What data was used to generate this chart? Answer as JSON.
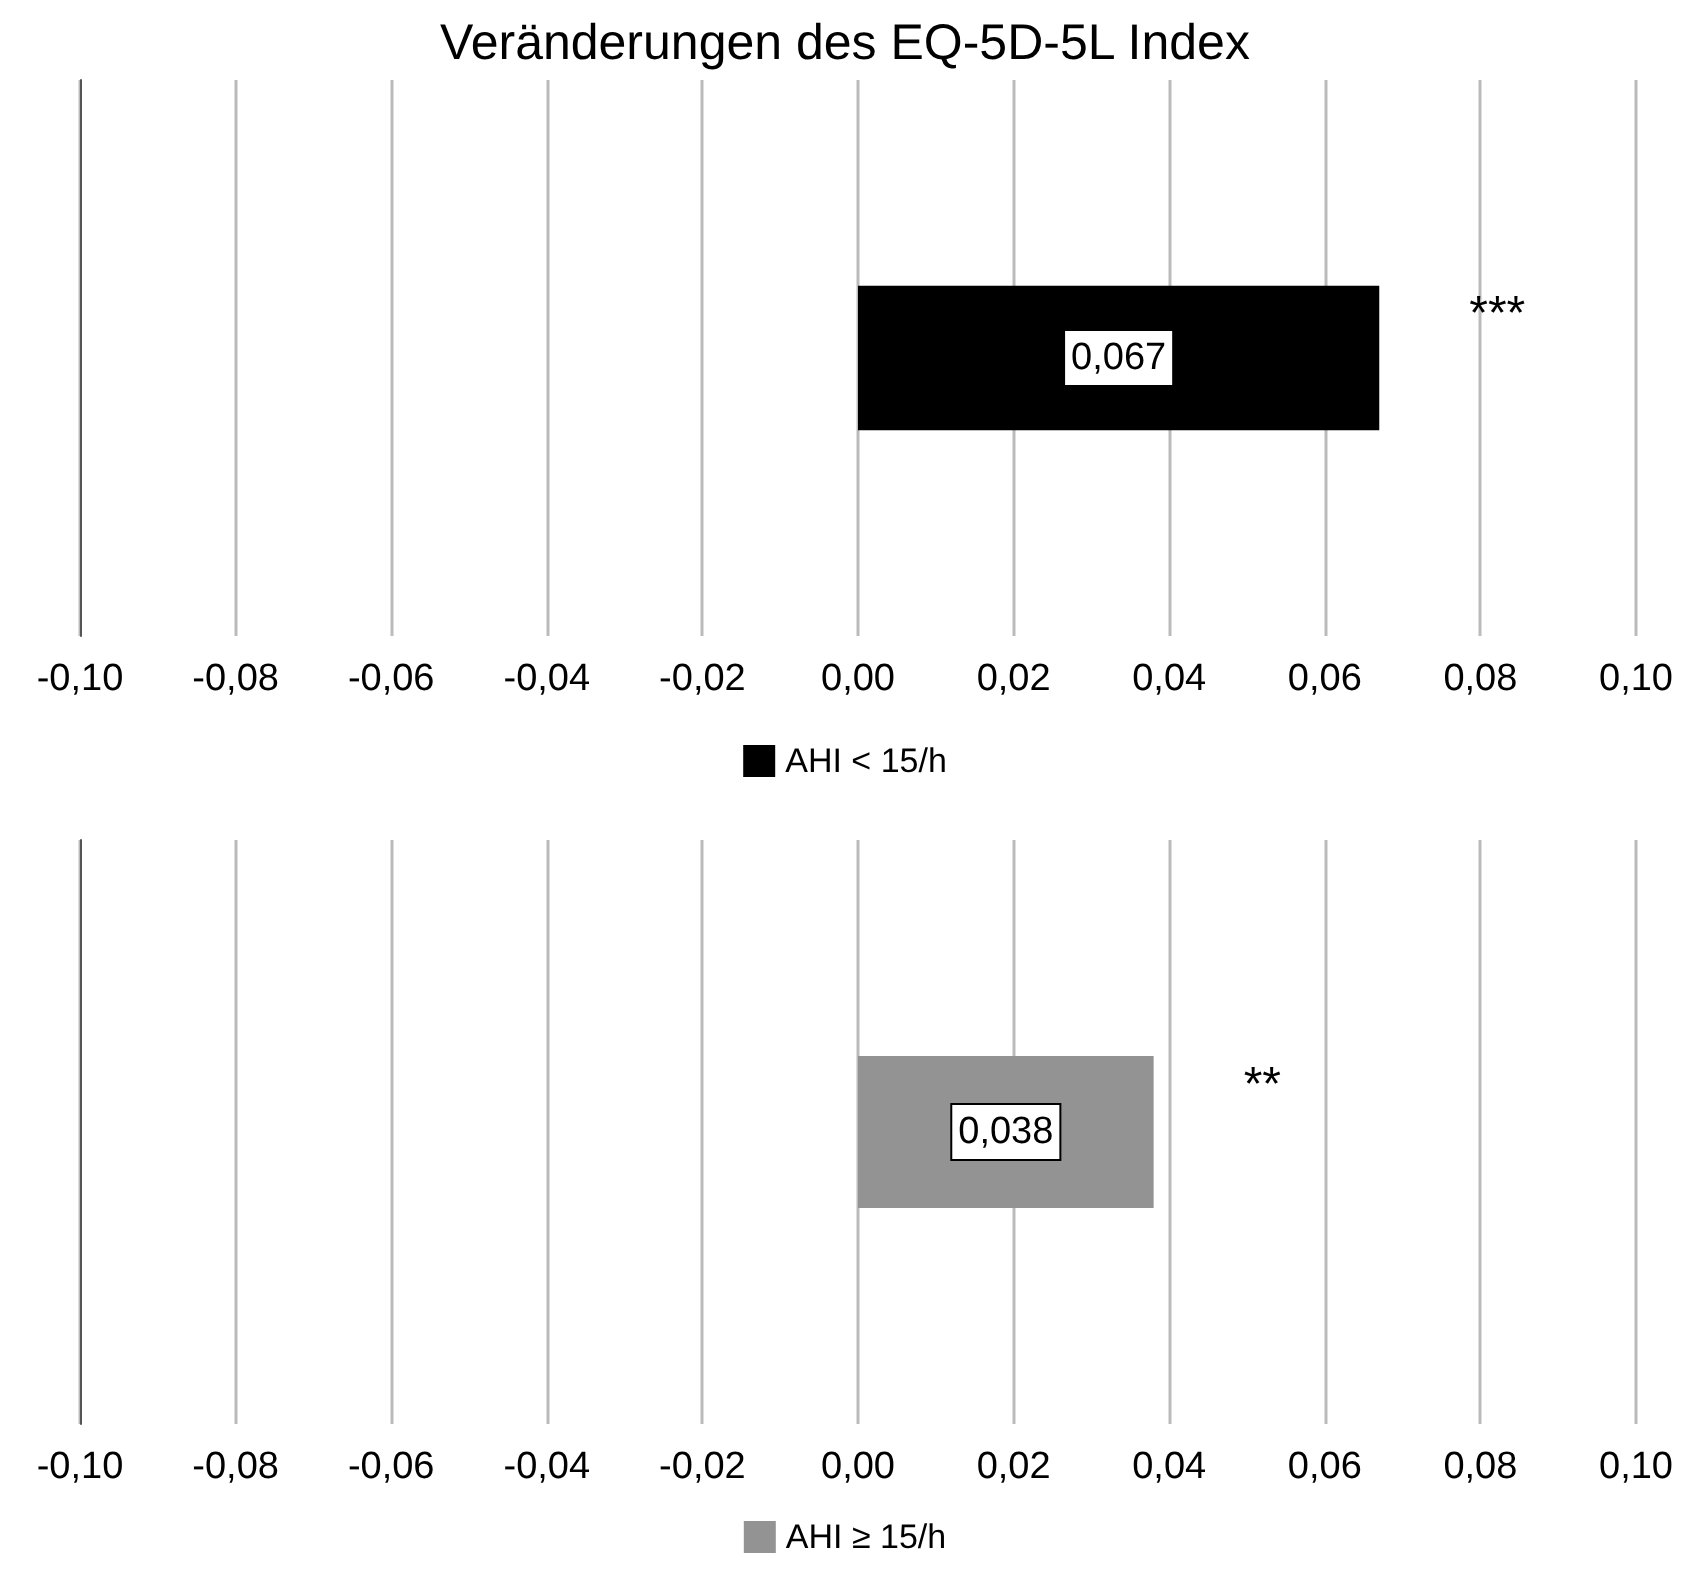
{
  "chart_data": [
    {
      "type": "bar",
      "orientation": "horizontal",
      "title": "Veränderungen des EQ-5D-5L Index",
      "categories": [
        null
      ],
      "series": [
        {
          "name": "AHI < 15/h",
          "color": "#000000",
          "values": [
            0.067
          ],
          "value_labels": [
            "0,067"
          ]
        }
      ],
      "xlim": [
        -0.1,
        0.1
      ],
      "xticks": [
        {
          "value": -0.1,
          "label": "-0,10"
        },
        {
          "value": -0.08,
          "label": "-0,08"
        },
        {
          "value": -0.06,
          "label": "-0,06"
        },
        {
          "value": -0.04,
          "label": "-0,04"
        },
        {
          "value": -0.02,
          "label": "-0,02"
        },
        {
          "value": 0,
          "label": "0,00"
        },
        {
          "value": 0.02,
          "label": "0,02"
        },
        {
          "value": 0.04,
          "label": "0,04"
        },
        {
          "value": 0.06,
          "label": "0,06"
        },
        {
          "value": 0.08,
          "label": "0,08"
        },
        {
          "value": 0.1,
          "label": "0,10"
        }
      ],
      "grid": "x",
      "legend": "bottom",
      "annotations": [
        "***"
      ]
    },
    {
      "type": "bar",
      "orientation": "horizontal",
      "categories": [
        null
      ],
      "series": [
        {
          "name": "AHI ≥ 15/h",
          "color": "#939393",
          "values": [
            0.038
          ],
          "value_labels": [
            "0,038"
          ]
        }
      ],
      "xlim": [
        -0.1,
        0.1
      ],
      "xticks": [
        {
          "value": -0.1,
          "label": "-0,10"
        },
        {
          "value": -0.08,
          "label": "-0,08"
        },
        {
          "value": -0.06,
          "label": "-0,06"
        },
        {
          "value": -0.04,
          "label": "-0,04"
        },
        {
          "value": -0.02,
          "label": "-0,02"
        },
        {
          "value": 0,
          "label": "0,00"
        },
        {
          "value": 0.02,
          "label": "0,02"
        },
        {
          "value": 0.04,
          "label": "0,04"
        },
        {
          "value": 0.06,
          "label": "0,06"
        },
        {
          "value": 0.08,
          "label": "0,08"
        },
        {
          "value": 0.1,
          "label": "0,10"
        }
      ],
      "grid": "x",
      "legend": "bottom",
      "annotations": [
        "**"
      ]
    }
  ]
}
